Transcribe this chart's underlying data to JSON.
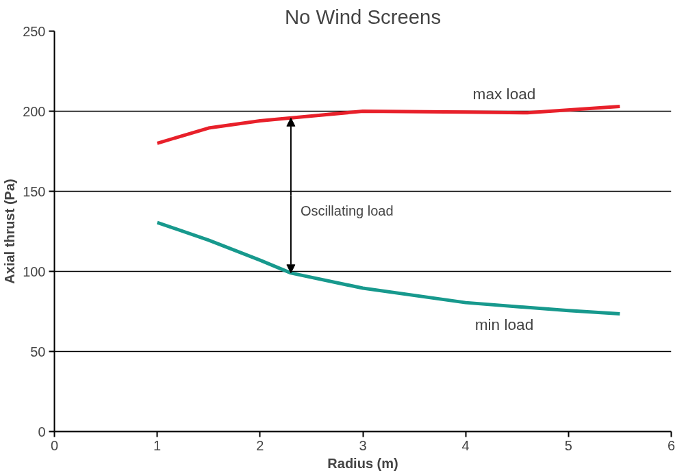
{
  "chart_data": {
    "type": "line",
    "title": "No Wind Screens",
    "xlabel": "Radius (m)",
    "ylabel": "Axial thrust (Pa)",
    "xlim": [
      0,
      6
    ],
    "xticks": [
      0,
      1,
      2,
      3,
      4,
      5,
      6
    ],
    "ylim": [
      0,
      250
    ],
    "yticks": [
      0,
      50,
      100,
      150,
      200,
      250
    ],
    "grid": "y",
    "series": [
      {
        "name": "max load",
        "color": "#e8202a",
        "x": [
          1,
          1.5,
          2,
          2.5,
          3,
          4,
          4.6,
          5.5
        ],
        "values": [
          180,
          189.5,
          194,
          197,
          200,
          199.5,
          199,
          203
        ]
      },
      {
        "name": "min load",
        "color": "#17998d",
        "x": [
          1,
          1.5,
          2,
          2.3,
          3,
          4,
          5,
          5.5
        ],
        "values": [
          130.5,
          119.5,
          107,
          99,
          89.5,
          80.5,
          75.5,
          73.5
        ]
      }
    ],
    "annotations": [
      {
        "text": "Oscillating load",
        "x": 2.3,
        "y": 99
      }
    ]
  }
}
